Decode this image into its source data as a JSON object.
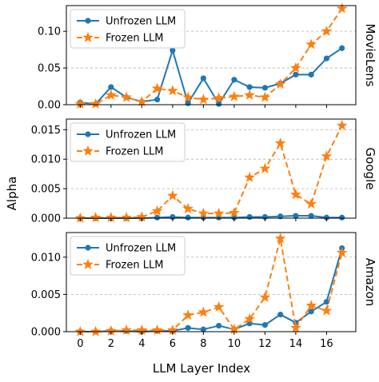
{
  "chart_data": {
    "type": "line",
    "xlabel": "LLM Layer Index",
    "ylabel": "Alpha",
    "x": [
      0,
      1,
      2,
      3,
      4,
      5,
      6,
      7,
      8,
      9,
      10,
      11,
      12,
      13,
      14,
      15,
      16,
      17
    ],
    "xticks": [
      0,
      2,
      4,
      6,
      8,
      10,
      12,
      14,
      16
    ],
    "colors": {
      "unfrozen": "#1f77b4",
      "frozen": "#ff7f0e"
    },
    "legend_placement": "top-left",
    "grid": "horizontal dashed",
    "panels": [
      {
        "label": "MovieLens",
        "ylim": [
          0,
          0.135
        ],
        "yticks": [
          0.0,
          0.05,
          0.1
        ],
        "ytick_labels": [
          "0.00",
          "0.05",
          "0.10"
        ],
        "series": [
          {
            "name": "Unfrozen LLM",
            "marker": "circle",
            "style": "solid",
            "values": [
              0.003,
              0.001,
              0.024,
              0.01,
              0.004,
              0.007,
              0.074,
              0.002,
              0.036,
              0.001,
              0.034,
              0.024,
              0.023,
              0.029,
              0.041,
              0.041,
              0.063,
              0.077
            ]
          },
          {
            "name": "Frozen LLM",
            "marker": "star",
            "style": "dashed",
            "values": [
              0.001,
              0.001,
              0.013,
              0.01,
              0.004,
              0.022,
              0.019,
              0.01,
              0.007,
              0.009,
              0.011,
              0.013,
              0.01,
              0.028,
              0.05,
              0.082,
              0.1,
              0.131
            ]
          }
        ]
      },
      {
        "label": "Google",
        "ylim": [
          0,
          0.0168
        ],
        "yticks": [
          0.0,
          0.005,
          0.01,
          0.015
        ],
        "ytick_labels": [
          "0.000",
          "0.005",
          "0.010",
          "0.015"
        ],
        "series": [
          {
            "name": "Unfrozen LLM",
            "marker": "circle",
            "style": "solid",
            "values": [
              0.0,
              0.0,
              0.0,
              0.0,
              0.0,
              0.0001,
              0.0002,
              0.0001,
              0.0001,
              0.0001,
              0.0001,
              0.0002,
              0.0002,
              0.0003,
              0.0004,
              0.0004,
              0.0001,
              0.0001
            ]
          },
          {
            "name": "Frozen LLM",
            "marker": "star",
            "style": "dashed",
            "values": [
              0.0,
              0.0001,
              0.0001,
              0.0001,
              0.0002,
              0.0012,
              0.0038,
              0.0016,
              0.0008,
              0.0008,
              0.0009,
              0.0069,
              0.0084,
              0.0127,
              0.004,
              0.0024,
              0.0105,
              0.0157
            ]
          }
        ]
      },
      {
        "label": "Amazon",
        "ylim": [
          0,
          0.0133
        ],
        "yticks": [
          0.0,
          0.005,
          0.01
        ],
        "ytick_labels": [
          "0.000",
          "0.005",
          "0.010"
        ],
        "series": [
          {
            "name": "Unfrozen LLM",
            "marker": "circle",
            "style": "solid",
            "values": [
              0.0,
              0.0,
              0.0001,
              0.0001,
              0.0,
              0.0001,
              0.0001,
              0.0005,
              0.0003,
              0.0008,
              0.0003,
              0.0011,
              0.0009,
              0.0023,
              0.0012,
              0.0027,
              0.004,
              0.0112
            ]
          },
          {
            "name": "Frozen LLM",
            "marker": "star",
            "style": "dashed",
            "values": [
              0.0,
              0.0,
              0.0001,
              0.0002,
              0.0002,
              0.0002,
              0.0002,
              0.0022,
              0.0026,
              0.0033,
              0.0003,
              0.0017,
              0.0046,
              0.0125,
              0.0005,
              0.0035,
              0.0028,
              0.0106
            ]
          }
        ]
      }
    ]
  }
}
